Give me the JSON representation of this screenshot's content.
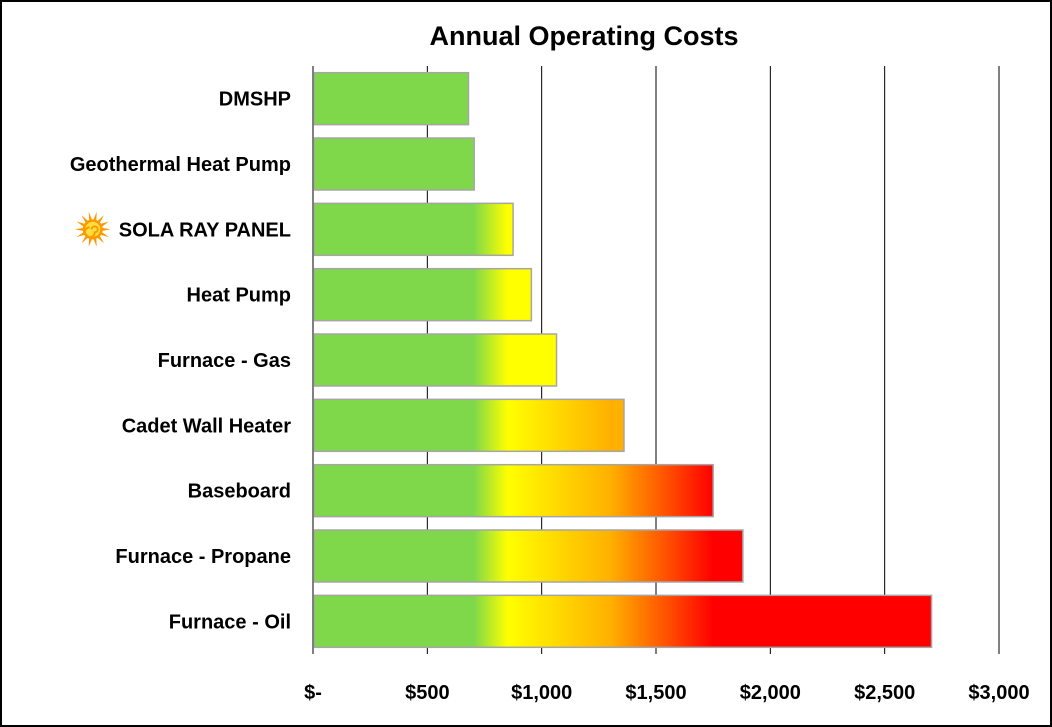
{
  "chart_data": {
    "type": "bar",
    "orientation": "horizontal",
    "title": "Annual Operating Costs",
    "xlabel": "",
    "ylabel": "",
    "categories": [
      "DMSHP",
      "Geothermal Heat Pump",
      "SOLA RAY PANEL",
      "Heat Pump",
      "Furnace - Gas",
      "Cadet Wall Heater",
      "Baseboard",
      "Furnace - Propane",
      "Furnace - Oil"
    ],
    "values": [
      680,
      705,
      875,
      955,
      1065,
      1360,
      1750,
      1880,
      2705
    ],
    "xlim": [
      0,
      3000
    ],
    "ticks": [
      0,
      500,
      1000,
      1500,
      2000,
      2500,
      3000
    ],
    "tick_labels": [
      "$-",
      "$500",
      "$1,000",
      "$1,500",
      "$2,000",
      "$2,500",
      "$3,000"
    ],
    "grid": "vertical",
    "legend": "none",
    "icon_category": "SOLA RAY PANEL",
    "icon": "sun-icon",
    "colors": {
      "green": "#7ED84A",
      "yellow": "#FFFF00",
      "orange": "#FFB000",
      "red": "#FF0000",
      "bar_border": "#A6A6A6",
      "sun_outer": "#FF9900",
      "sun_inner": "#FFE040"
    },
    "color_scale_stops": [
      {
        "value": 700,
        "color": "#7ED84A"
      },
      {
        "value": 850,
        "color": "#FFFF00"
      },
      {
        "value": 1300,
        "color": "#FFB000"
      },
      {
        "value": 1750,
        "color": "#FF0000"
      }
    ]
  }
}
